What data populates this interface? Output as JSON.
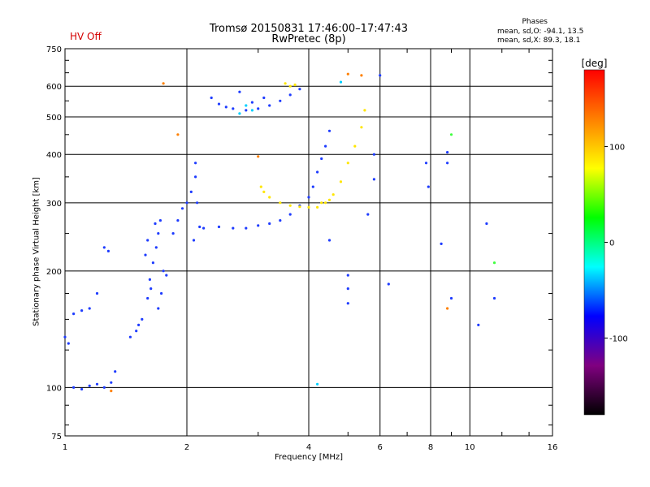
{
  "header": {
    "title_line1": "Tromsø 20150831 17:46:00–17:47:43",
    "title_line2": "RwPretec (8p)",
    "hv_status": "HV Off",
    "phases_title": "Phases",
    "phases_o": "mean, sd,O: -94.1, 13.5",
    "phases_x": "mean, sd,X:  89.3, 18.1"
  },
  "chart_data": {
    "type": "scatter",
    "xlabel": "Frequency [MHz]",
    "ylabel": "Stationary phase Virtual Height [km]",
    "x_scale": "log",
    "y_scale": "log",
    "xlim": [
      1,
      16
    ],
    "ylim": [
      75,
      750
    ],
    "x_ticks": [
      1,
      2,
      4,
      6,
      8,
      10,
      16
    ],
    "x_tick_labels": [
      "1",
      "2",
      "4",
      "6",
      "8",
      "10",
      "16"
    ],
    "y_ticks": [
      75,
      100,
      200,
      300,
      400,
      500,
      600,
      750
    ],
    "y_tick_labels": [
      "75",
      "100",
      "200",
      "300",
      "400",
      "500",
      "600",
      "750"
    ],
    "grid": true,
    "colorbar": {
      "label": "[deg]",
      "range": [
        -180,
        180
      ],
      "ticks": [
        100,
        0,
        -100
      ],
      "tick_labels": [
        "100",
        "0",
        "-100"
      ],
      "colors": [
        "#ff0000",
        "#ff8000",
        "#ffff00",
        "#00ff00",
        "#00ffff",
        "#0000ff",
        "#800080",
        "#000000"
      ]
    },
    "series": [
      {
        "color": "#1e3cff",
        "points": [
          [
            1.0,
            135
          ],
          [
            1.02,
            130
          ],
          [
            1.05,
            100
          ],
          [
            1.1,
            99
          ],
          [
            1.15,
            101
          ],
          [
            1.2,
            102
          ],
          [
            1.25,
            100
          ],
          [
            1.3,
            103
          ],
          [
            1.33,
            110
          ],
          [
            1.05,
            155
          ],
          [
            1.1,
            158
          ],
          [
            1.15,
            160
          ],
          [
            1.2,
            175
          ],
          [
            1.25,
            230
          ],
          [
            1.28,
            225
          ]
        ]
      },
      {
        "color": "#1e3cff",
        "points": [
          [
            1.45,
            135
          ],
          [
            1.5,
            140
          ],
          [
            1.55,
            150
          ],
          [
            1.6,
            170
          ],
          [
            1.62,
            190
          ],
          [
            1.65,
            210
          ],
          [
            1.68,
            230
          ],
          [
            1.7,
            250
          ],
          [
            1.72,
            270
          ],
          [
            1.58,
            220
          ],
          [
            1.63,
            180
          ],
          [
            1.7,
            160
          ],
          [
            1.75,
            200
          ],
          [
            1.52,
            145
          ],
          [
            1.6,
            240
          ],
          [
            1.67,
            265
          ],
          [
            1.73,
            175
          ],
          [
            1.78,
            195
          ]
        ]
      },
      {
        "color": "#1e3cff",
        "points": [
          [
            1.85,
            250
          ],
          [
            1.9,
            270
          ],
          [
            1.95,
            290
          ],
          [
            2.0,
            300
          ],
          [
            2.05,
            320
          ],
          [
            2.1,
            350
          ],
          [
            2.1,
            380
          ],
          [
            2.12,
            300
          ],
          [
            2.15,
            260
          ],
          [
            2.08,
            240
          ],
          [
            2.2,
            258
          ],
          [
            2.4,
            260
          ],
          [
            2.6,
            258
          ],
          [
            2.8,
            258
          ],
          [
            3.0,
            262
          ],
          [
            3.2,
            265
          ],
          [
            3.4,
            270
          ],
          [
            3.6,
            280
          ],
          [
            3.8,
            295
          ],
          [
            4.0,
            310
          ],
          [
            4.1,
            330
          ],
          [
            4.2,
            360
          ],
          [
            4.3,
            390
          ],
          [
            4.4,
            420
          ],
          [
            4.5,
            460
          ]
        ]
      },
      {
        "color": "#1e3cff",
        "points": [
          [
            2.3,
            560
          ],
          [
            2.4,
            540
          ],
          [
            2.5,
            530
          ],
          [
            2.6,
            525
          ],
          [
            2.8,
            520
          ],
          [
            3.0,
            525
          ],
          [
            3.2,
            535
          ],
          [
            3.4,
            550
          ],
          [
            3.6,
            570
          ],
          [
            3.8,
            590
          ],
          [
            2.7,
            580
          ],
          [
            2.9,
            545
          ],
          [
            3.1,
            560
          ]
        ]
      },
      {
        "color": "#ffe600",
        "points": [
          [
            3.05,
            330
          ],
          [
            3.1,
            320
          ],
          [
            3.2,
            310
          ],
          [
            3.4,
            300
          ],
          [
            3.6,
            295
          ],
          [
            3.8,
            293
          ],
          [
            4.0,
            292
          ],
          [
            4.2,
            292
          ],
          [
            4.4,
            300
          ],
          [
            4.6,
            315
          ],
          [
            4.8,
            340
          ],
          [
            5.0,
            380
          ],
          [
            5.2,
            420
          ],
          [
            5.4,
            470
          ],
          [
            5.5,
            520
          ],
          [
            3.5,
            610
          ],
          [
            3.6,
            600
          ],
          [
            3.7,
            605
          ],
          [
            4.3,
            300
          ],
          [
            4.5,
            305
          ]
        ]
      },
      {
        "color": "#00d0ff",
        "points": [
          [
            2.8,
            535
          ],
          [
            2.9,
            520
          ],
          [
            2.7,
            510
          ],
          [
            4.2,
            102
          ],
          [
            4.8,
            615
          ]
        ]
      },
      {
        "color": "#ff8000",
        "points": [
          [
            1.75,
            610
          ],
          [
            1.9,
            450
          ],
          [
            3.0,
            395
          ],
          [
            5.0,
            645
          ],
          [
            8.8,
            160
          ],
          [
            1.3,
            98
          ],
          [
            5.4,
            640
          ]
        ]
      },
      {
        "color": "#1e3cff",
        "points": [
          [
            5.0,
            195
          ],
          [
            5.0,
            180
          ],
          [
            5.0,
            165
          ],
          [
            5.8,
            400
          ],
          [
            5.8,
            345
          ],
          [
            6.3,
            185
          ],
          [
            7.8,
            380
          ],
          [
            7.9,
            330
          ],
          [
            8.5,
            235
          ],
          [
            8.8,
            405
          ],
          [
            8.8,
            380
          ],
          [
            9.0,
            170
          ],
          [
            10.5,
            145
          ],
          [
            11.5,
            170
          ],
          [
            11.0,
            265
          ],
          [
            4.5,
            240
          ],
          [
            5.6,
            280
          ],
          [
            6.0,
            640
          ]
        ]
      },
      {
        "color": "#40ff40",
        "points": [
          [
            9.0,
            450
          ],
          [
            11.5,
            210
          ]
        ]
      }
    ]
  }
}
